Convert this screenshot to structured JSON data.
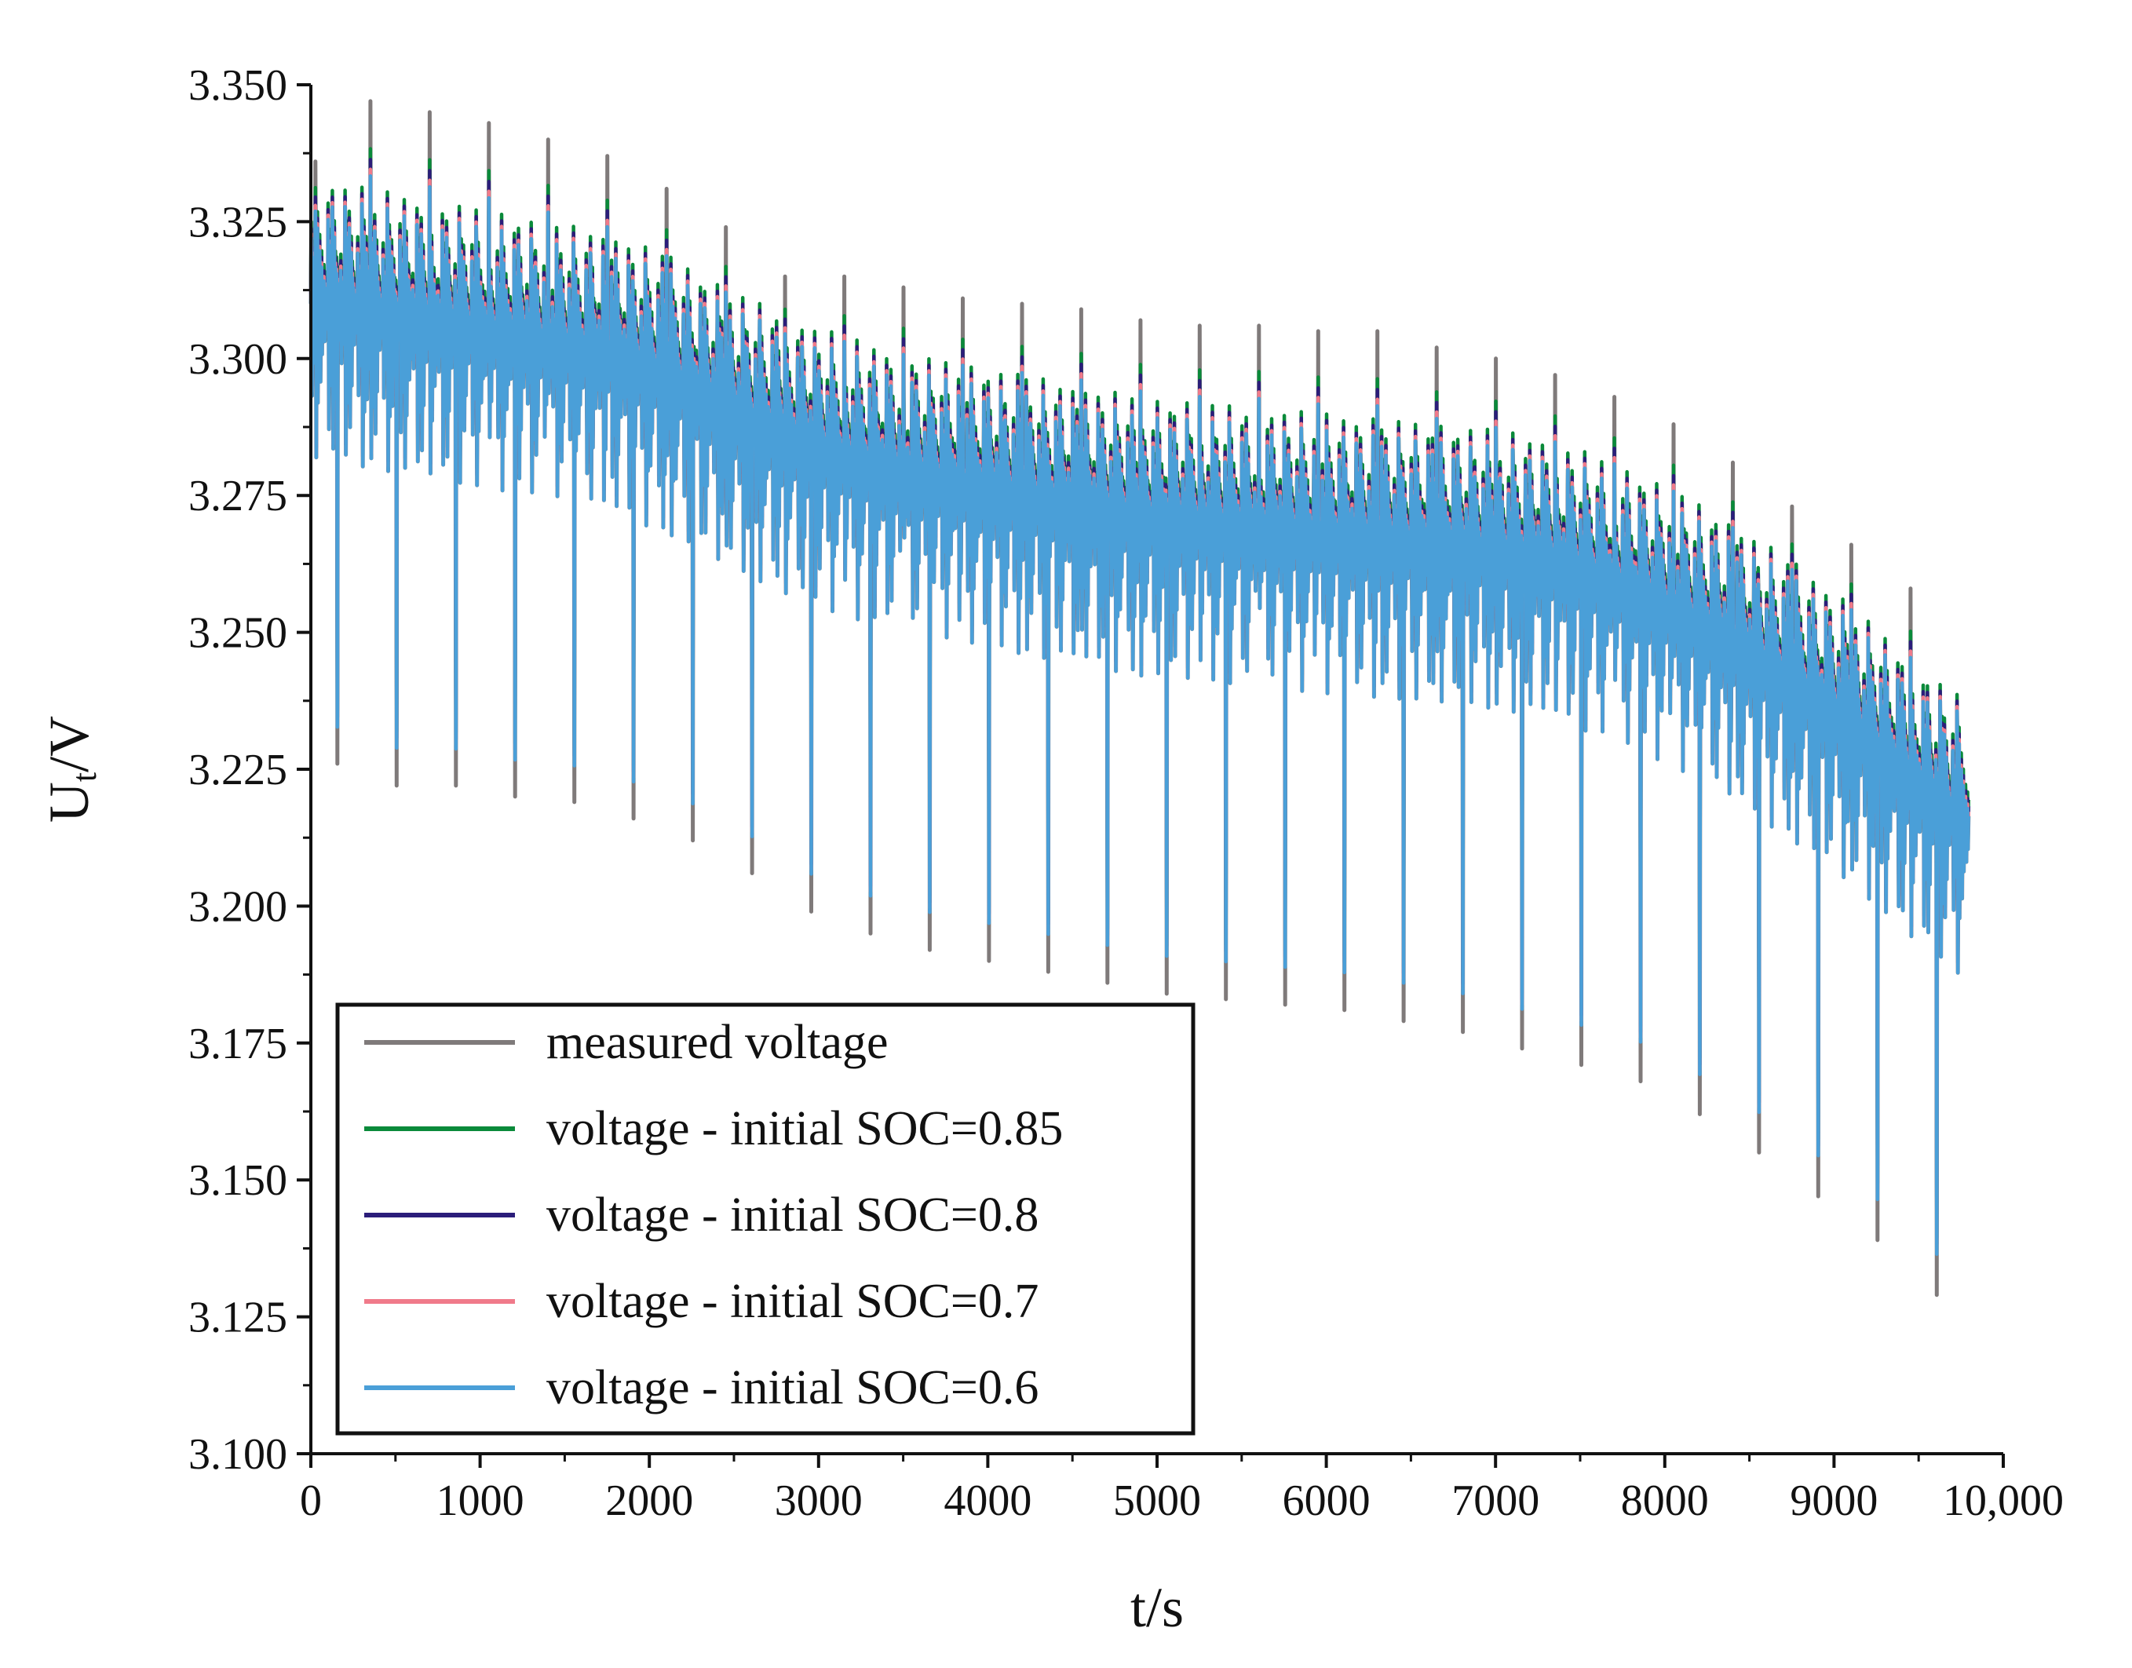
{
  "chart_data": {
    "type": "line",
    "title": "",
    "xlabel": "t/s",
    "ylabel_main": "U",
    "ylabel_sub": "t",
    "ylabel_rest": "/V",
    "xlim": [
      0,
      10000
    ],
    "ylim": [
      3.1,
      3.35
    ],
    "x_ticks": [
      0,
      1000,
      2000,
      3000,
      4000,
      5000,
      6000,
      7000,
      8000,
      9000,
      10000
    ],
    "x_tick_labels": [
      "0",
      "1000",
      "2000",
      "3000",
      "4000",
      "5000",
      "6000",
      "7000",
      "8000",
      "9000",
      "10,000"
    ],
    "y_ticks": [
      3.1,
      3.125,
      3.15,
      3.175,
      3.2,
      3.225,
      3.25,
      3.275,
      3.3,
      3.325,
      3.35
    ],
    "y_tick_labels": [
      "3.100",
      "3.125",
      "3.150",
      "3.175",
      "3.200",
      "3.225",
      "3.250",
      "3.275",
      "3.300",
      "3.325",
      "3.350"
    ],
    "grid": false,
    "legend_position": "bottom-left",
    "cycle_model": {
      "cycle_starts": [
        0,
        350,
        700,
        1050,
        1400,
        1750,
        2100,
        2450,
        2800,
        3150,
        3500,
        3850,
        4200,
        4550,
        4900,
        5250,
        5600,
        5950,
        6300,
        6650,
        7000,
        7350,
        7700,
        8050,
        8400,
        8750,
        9100,
        9450
      ],
      "cycle_length_s": 350,
      "t_end": 9820,
      "baseline_start_mid": [
        3.31,
        3.308,
        3.306,
        3.304,
        3.302,
        3.3,
        3.296,
        3.29,
        3.285,
        3.281,
        3.278,
        3.276,
        3.274,
        3.272,
        3.27,
        3.269,
        3.268,
        3.267,
        3.266,
        3.265,
        3.264,
        3.262,
        3.258,
        3.253,
        3.247,
        3.24,
        3.232,
        3.222
      ],
      "measured_peak": [
        3.336,
        3.347,
        3.345,
        3.343,
        3.34,
        3.337,
        3.331,
        3.324,
        3.315,
        3.315,
        3.313,
        3.311,
        3.31,
        3.309,
        3.307,
        3.306,
        3.306,
        3.305,
        3.305,
        3.302,
        3.3,
        3.297,
        3.293,
        3.288,
        3.281,
        3.273,
        3.266,
        3.258
      ],
      "measured_dip": [
        3.226,
        3.222,
        3.222,
        3.22,
        3.219,
        3.216,
        3.212,
        3.206,
        3.199,
        3.195,
        3.192,
        3.19,
        3.188,
        3.186,
        3.184,
        3.183,
        3.182,
        3.181,
        3.179,
        3.177,
        3.174,
        3.171,
        3.168,
        3.162,
        3.155,
        3.147,
        3.139,
        3.129
      ]
    },
    "series": [
      {
        "name": "measured voltage",
        "color": "#7f7a7a",
        "soc_offset": 0.0,
        "peak_scale": 1.0,
        "dip_scale": 1.0
      },
      {
        "name": "voltage - initial SOC=0.85",
        "color": "#0a8a3a",
        "soc_offset": 0.003,
        "peak_scale": 0.7,
        "dip_scale": 0.92
      },
      {
        "name": "voltage - initial SOC=0.8",
        "color": "#2b1d7a",
        "soc_offset": 0.0018,
        "peak_scale": 0.68,
        "dip_scale": 0.92
      },
      {
        "name": "voltage - initial SOC=0.7",
        "color": "#f07a8a",
        "soc_offset": 0.0008,
        "peak_scale": 0.66,
        "dip_scale": 0.92
      },
      {
        "name": "voltage - initial SOC=0.6",
        "color": "#4a9fd8",
        "soc_offset": 0.0,
        "peak_scale": 0.65,
        "dip_scale": 0.92
      }
    ]
  },
  "legend": {
    "items": [
      {
        "label": "measured voltage",
        "color": "#7f7a7a"
      },
      {
        "label": "voltage - initial SOC=0.85",
        "color": "#0a8a3a"
      },
      {
        "label": "voltage - initial SOC=0.8",
        "color": "#2b1d7a"
      },
      {
        "label": "voltage - initial SOC=0.7",
        "color": "#f07a8a"
      },
      {
        "label": "voltage - initial SOC=0.6",
        "color": "#4a9fd8"
      }
    ]
  }
}
